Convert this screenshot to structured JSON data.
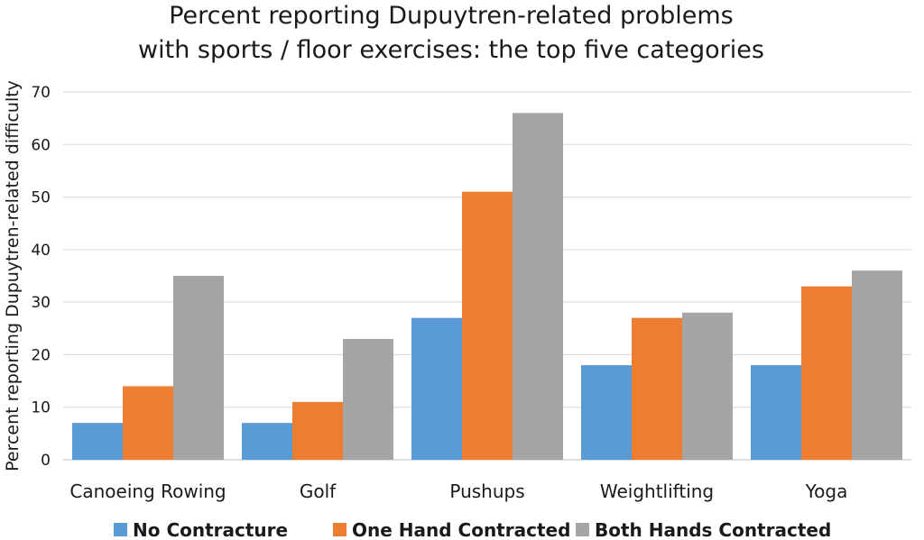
{
  "chart_data": {
    "type": "bar",
    "title_lines": [
      "Percent reporting Dupuytren-related problems",
      "with sports / floor exercises: the top five categories"
    ],
    "xlabel": "",
    "ylabel": "Percent reporting Dupuytren-related difficulty",
    "ylim": [
      0,
      70
    ],
    "yticks": [
      0,
      10,
      20,
      30,
      40,
      50,
      60,
      70
    ],
    "grid": true,
    "legend_position": "bottom",
    "categories": [
      "Canoeing Rowing",
      "Golf",
      "Pushups",
      "Weightlifting",
      "Yoga"
    ],
    "series": [
      {
        "name": "No Contracture",
        "color": "#5b9bd5",
        "values": [
          7,
          7,
          27,
          18,
          18
        ]
      },
      {
        "name": "One Hand Contracted",
        "color": "#ed7d31",
        "values": [
          14,
          11,
          51,
          27,
          33
        ]
      },
      {
        "name": "Both Hands Contracted",
        "color": "#a5a5a5",
        "values": [
          35,
          23,
          66,
          28,
          36
        ]
      }
    ]
  }
}
